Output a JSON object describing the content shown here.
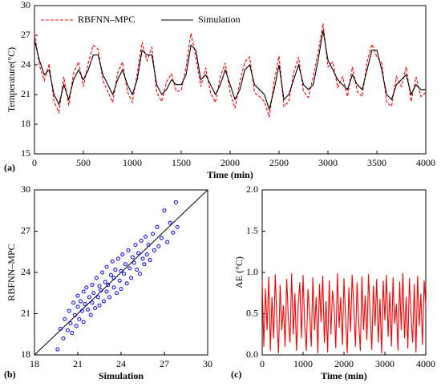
{
  "chart_data": [
    {
      "type": "line",
      "panel_label": "(a)",
      "xlabel": "Time (min)",
      "ylabel": "Temperature(°C)",
      "xlim": [
        0,
        4000
      ],
      "xticks": [
        0,
        500,
        1000,
        1500,
        2000,
        2500,
        3000,
        3500,
        4000
      ],
      "ylim": [
        15,
        30
      ],
      "yticks": [
        15,
        18,
        21,
        24,
        27,
        30
      ],
      "legend": "top-left",
      "x": [
        0,
        50,
        100,
        150,
        200,
        250,
        300,
        350,
        400,
        450,
        500,
        550,
        600,
        650,
        700,
        750,
        800,
        850,
        900,
        950,
        1000,
        1050,
        1100,
        1150,
        1200,
        1250,
        1300,
        1350,
        1400,
        1450,
        1500,
        1550,
        1600,
        1650,
        1700,
        1750,
        1800,
        1850,
        1900,
        1950,
        2000,
        2050,
        2100,
        2150,
        2200,
        2250,
        2300,
        2350,
        2400,
        2450,
        2500,
        2550,
        2600,
        2650,
        2700,
        2750,
        2800,
        2850,
        2900,
        2950,
        3000,
        3050,
        3100,
        3150,
        3200,
        3250,
        3300,
        3350,
        3400,
        3450,
        3500,
        3550,
        3600,
        3650,
        3700,
        3750,
        3800,
        3850,
        3900,
        3950,
        4000
      ],
      "series": [
        {
          "name": "RBFNN–MPC",
          "color": "#ff0000",
          "dashed": true,
          "values": [
            27.2,
            24.0,
            22.4,
            24.1,
            20.3,
            19.2,
            22.8,
            19.9,
            23.2,
            24.3,
            21.8,
            24.2,
            26.0,
            25.6,
            22.4,
            21.3,
            20.2,
            23.2,
            24.3,
            21.3,
            20.2,
            23.1,
            26.3,
            24.4,
            25.8,
            21.2,
            20.3,
            22.3,
            23.1,
            21.3,
            21.4,
            23.8,
            27.2,
            24.8,
            21.8,
            23.7,
            21.2,
            20.2,
            22.8,
            24.2,
            21.2,
            19.6,
            22.3,
            24.3,
            24.8,
            21.2,
            20.8,
            20.3,
            18.7,
            22.3,
            24.9,
            19.8,
            20.3,
            23.2,
            24.8,
            21.3,
            20.7,
            22.8,
            25.3,
            28.2,
            23.8,
            24.3,
            21.7,
            22.8,
            20.8,
            23.8,
            21.3,
            20.8,
            24.3,
            26.1,
            24.8,
            24.2,
            20.2,
            19.8,
            22.8,
            21.8,
            23.8,
            20.3,
            22.8,
            20.8,
            21.2
          ]
        },
        {
          "name": "Simulation",
          "color": "#000000",
          "dashed": false,
          "values": [
            26.5,
            24.5,
            23,
            23.5,
            21,
            20,
            22,
            20.5,
            22.5,
            23.5,
            22.5,
            23.5,
            25,
            25,
            23,
            22,
            21,
            22.5,
            23.5,
            22,
            21,
            22.5,
            25.5,
            25,
            25,
            22,
            21,
            21.5,
            22.5,
            22,
            22,
            23,
            26,
            25.5,
            22.5,
            23,
            22,
            21,
            22,
            23.5,
            22,
            20.5,
            21.5,
            23.5,
            24,
            22,
            21.5,
            21,
            19.5,
            21.5,
            24,
            20.5,
            21,
            22.5,
            24,
            22,
            21.5,
            22,
            24.5,
            27.5,
            24.5,
            23.5,
            22.5,
            22,
            21.5,
            23,
            22,
            21.5,
            23.5,
            25.5,
            25.5,
            23.5,
            21,
            20.5,
            22,
            22.5,
            23,
            21,
            22,
            21.5,
            21.5
          ]
        }
      ]
    },
    {
      "type": "scatter",
      "panel_label": "(b)",
      "xlabel": "Simulation",
      "ylabel": "RBFNN–MPC",
      "color": "#0000ff",
      "xlim": [
        18,
        30
      ],
      "xticks": [
        18,
        21,
        24,
        27,
        30
      ],
      "ylim": [
        18,
        30
      ],
      "yticks": [
        18,
        21,
        24,
        27,
        30
      ],
      "diagonal": true,
      "x": [
        19.6,
        19.8,
        20.0,
        20.1,
        20.3,
        20.4,
        20.5,
        20.6,
        20.7,
        20.8,
        20.9,
        21.0,
        21.0,
        21.1,
        21.2,
        21.3,
        21.4,
        21.4,
        21.5,
        21.6,
        21.7,
        21.8,
        21.9,
        22.0,
        22.0,
        22.1,
        22.2,
        22.3,
        22.4,
        22.5,
        22.5,
        22.6,
        22.7,
        22.8,
        22.9,
        23.0,
        23.0,
        23.1,
        23.2,
        23.3,
        23.4,
        23.5,
        23.5,
        23.6,
        23.7,
        23.8,
        23.9,
        24.0,
        24.0,
        24.1,
        24.2,
        24.3,
        24.4,
        24.5,
        24.6,
        24.7,
        24.8,
        24.9,
        25.0,
        25.1,
        25.2,
        25.3,
        25.4,
        25.5,
        25.6,
        25.7,
        25.8,
        25.9,
        26.0,
        26.2,
        26.3,
        26.5,
        26.6,
        26.8,
        27.0,
        27.2,
        27.4,
        27.6,
        27.8,
        27.9
      ],
      "values": [
        18.4,
        19.9,
        19.2,
        20.6,
        19.8,
        21.2,
        20.3,
        19.6,
        21.8,
        20.9,
        20.1,
        21.5,
        22.3,
        20.6,
        21.9,
        21.2,
        22.6,
        20.4,
        21.7,
        22.9,
        21.3,
        22.2,
        20.9,
        23.1,
        21.8,
        22.5,
        21.4,
        23.6,
        22.2,
        21.6,
        23.0,
        22.7,
        24.0,
        21.9,
        23.3,
        22.6,
        24.4,
        23.1,
        22.2,
        23.8,
        24.8,
        22.9,
        23.6,
        24.2,
        22.5,
        25.0,
        23.4,
        24.1,
        22.8,
        25.3,
        23.9,
        24.6,
        23.2,
        25.6,
        24.3,
        23.6,
        25.1,
        24.7,
        26.0,
        24.2,
        25.4,
        23.9,
        26.3,
        25.0,
        24.6,
        26.6,
        25.3,
        26.0,
        24.9,
        26.8,
        25.6,
        27.3,
        25.9,
        26.5,
        28.5,
        26.2,
        27.6,
        26.9,
        29.1,
        27.3
      ]
    },
    {
      "type": "line",
      "panel_label": "(c)",
      "xlabel": "Time (min)",
      "ylabel": "AE (°C)",
      "xlim": [
        0,
        4000
      ],
      "xticks": [
        0,
        1000,
        2000,
        3000,
        4000
      ],
      "ylim": [
        0,
        2
      ],
      "yticks": [
        {
          "value": 0,
          "label": "0.0"
        },
        {
          "value": 0.5,
          "label": "0.5"
        },
        {
          "value": 1,
          "label": "1.0"
        },
        {
          "value": 1.5,
          "label": "1.5"
        },
        {
          "value": 2,
          "label": "2.0"
        }
      ],
      "x": [
        0,
        40,
        80,
        120,
        160,
        200,
        240,
        280,
        320,
        360,
        400,
        440,
        480,
        520,
        560,
        600,
        640,
        680,
        720,
        760,
        800,
        840,
        880,
        920,
        960,
        1000,
        1040,
        1080,
        1120,
        1160,
        1200,
        1240,
        1280,
        1320,
        1360,
        1400,
        1440,
        1480,
        1520,
        1560,
        1600,
        1640,
        1680,
        1720,
        1760,
        1800,
        1840,
        1880,
        1920,
        1960,
        2000,
        2040,
        2080,
        2120,
        2160,
        2200,
        2240,
        2280,
        2320,
        2360,
        2400,
        2440,
        2480,
        2520,
        2560,
        2600,
        2640,
        2680,
        2720,
        2760,
        2800,
        2840,
        2880,
        2920,
        2960,
        3000,
        3040,
        3080,
        3120,
        3160,
        3200,
        3240,
        3280,
        3320,
        3360,
        3400,
        3440,
        3480,
        3520,
        3560,
        3600,
        3640,
        3680,
        3720,
        3760,
        3800,
        3840,
        3880,
        3920,
        3960,
        4000
      ],
      "series": [
        {
          "name": null,
          "color": "#ff0000",
          "dashed": false,
          "values": [
            0.9,
            0.1,
            0.8,
            0.3,
            0.95,
            0.05,
            0.7,
            0.2,
            0.98,
            0.4,
            0.02,
            0.85,
            0.3,
            0.6,
            0.1,
            0.92,
            0.45,
            0.15,
            0.99,
            0.25,
            0.75,
            0.05,
            0.6,
            0.88,
            0.2,
            0.97,
            0.35,
            0.05,
            0.8,
            0.5,
            0.1,
            0.94,
            0.3,
            0.7,
            0.02,
            0.86,
            0.4,
            0.96,
            0.15,
            0.65,
            0.03,
            0.9,
            0.25,
            0.78,
            0.55,
            0.08,
            0.99,
            0.33,
            0.7,
            0.12,
            0.93,
            0.45,
            0.02,
            0.82,
            0.28,
            0.97,
            0.6,
            0.1,
            0.88,
            0.4,
            0.05,
            0.95,
            0.3,
            0.72,
            0.18,
            0.98,
            0.5,
            0.06,
            0.84,
            0.35,
            0.92,
            0.15,
            0.68,
            0.02,
            0.9,
            0.42,
            0.97,
            0.22,
            0.76,
            0.1,
            0.94,
            0.38,
            0.62,
            0.05,
            0.89,
            0.3,
            0.99,
            0.2,
            0.7,
            0.08,
            0.93,
            0.46,
            0.15,
            0.86,
            0.03,
            0.96,
            0.35,
            0.74,
            0.12,
            0.9,
            0.6
          ]
        }
      ]
    }
  ]
}
